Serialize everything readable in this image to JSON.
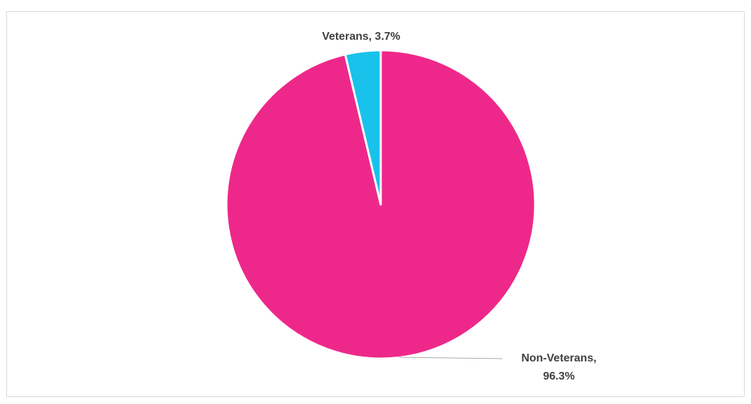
{
  "chart_data": {
    "type": "pie",
    "title": "",
    "start_angle_deg": 0,
    "direction": "clockwise",
    "slices": [
      {
        "name": "Non-Veterans",
        "value": 96.3,
        "label_line1": "Non-Veterans,",
        "label_line2": "96.3%",
        "color": "#EE288A"
      },
      {
        "name": "Veterans",
        "value": 3.7,
        "label_line1": "Veterans, 3.7%",
        "label_line2": "",
        "color": "#19C2EA"
      }
    ],
    "legend": "none",
    "border_color": "#D9D9D9",
    "leader_line_color": "#A6A6A6"
  }
}
